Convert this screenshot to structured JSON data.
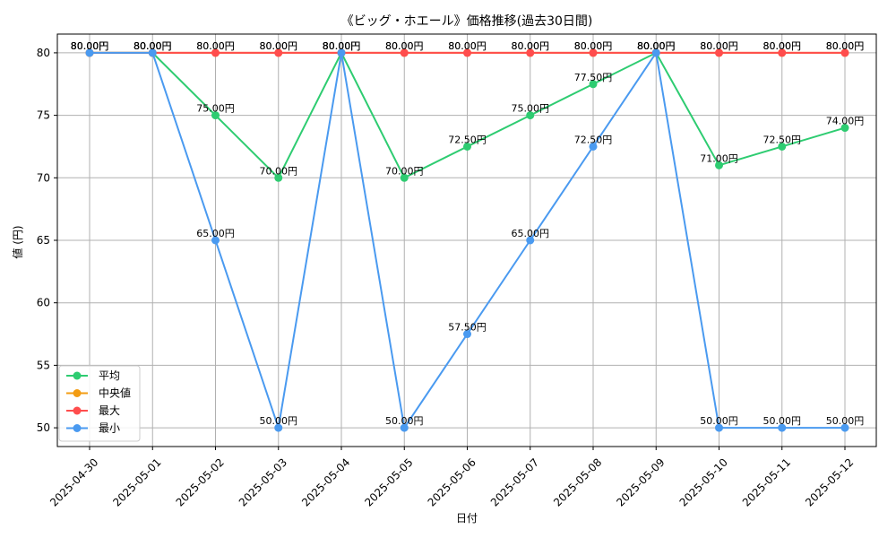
{
  "chart_data": {
    "type": "line",
    "title": "《ビッグ・ホエール》価格推移(過去30日間)",
    "xlabel": "日付",
    "ylabel": "値 (円)",
    "unit_suffix": "円",
    "categories": [
      "2025-04-30",
      "2025-05-01",
      "2025-05-02",
      "2025-05-03",
      "2025-05-04",
      "2025-05-05",
      "2025-05-06",
      "2025-05-07",
      "2025-05-08",
      "2025-05-09",
      "2025-05-10",
      "2025-05-11",
      "2025-05-12"
    ],
    "ylim": [
      48.5,
      81.5
    ],
    "yticks": [
      50,
      55,
      60,
      65,
      70,
      75,
      80
    ],
    "grid": true,
    "legend_position": "lower-left",
    "series": [
      {
        "name": "平均",
        "color": "#2ecc71",
        "values": [
          80,
          80,
          75,
          70,
          80,
          70,
          72.5,
          75,
          77.5,
          80,
          71,
          72.5,
          74
        ]
      },
      {
        "name": "中央値",
        "color": "#f39c12",
        "values": [
          80,
          80,
          80,
          80,
          80,
          80,
          80,
          80,
          80,
          80,
          80,
          80,
          80
        ]
      },
      {
        "name": "最大",
        "color": "#ff4d4d",
        "values": [
          80,
          80,
          80,
          80,
          80,
          80,
          80,
          80,
          80,
          80,
          80,
          80,
          80
        ]
      },
      {
        "name": "最小",
        "color": "#4a9af0",
        "values": [
          80,
          80,
          65,
          50,
          80,
          50,
          57.5,
          65,
          72.5,
          80,
          50,
          50,
          50
        ]
      }
    ]
  }
}
